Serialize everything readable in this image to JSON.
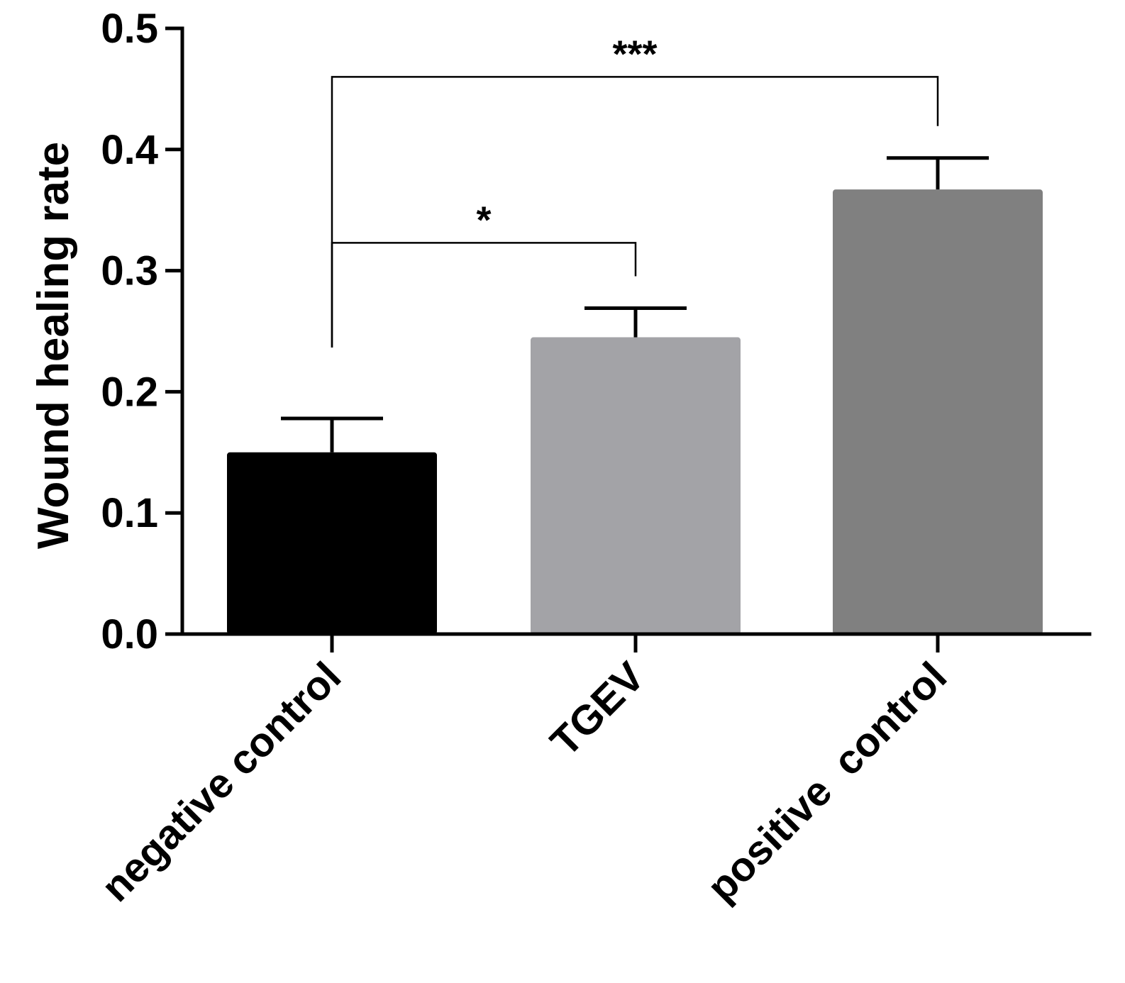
{
  "chart_data": {
    "type": "bar",
    "title": "",
    "xlabel": "",
    "ylabel": "Wound healing rate",
    "ylim": [
      0,
      0.5
    ],
    "yticks": [
      "0.0",
      "0.1",
      "0.2",
      "0.3",
      "0.4",
      "0.5"
    ],
    "categories": [
      "negative control",
      "TGEV",
      "positive  control"
    ],
    "values": [
      0.15,
      0.245,
      0.367
    ],
    "errors": [
      0.028,
      0.024,
      0.026
    ],
    "colors": [
      "#000000",
      "#a3a3a7",
      "#808080"
    ],
    "grid": false,
    "significance": [
      {
        "from": 0,
        "to": 1,
        "label": "*",
        "level": 0.323
      },
      {
        "from": 0,
        "to": 2,
        "label": "***",
        "level": 0.46
      }
    ]
  }
}
